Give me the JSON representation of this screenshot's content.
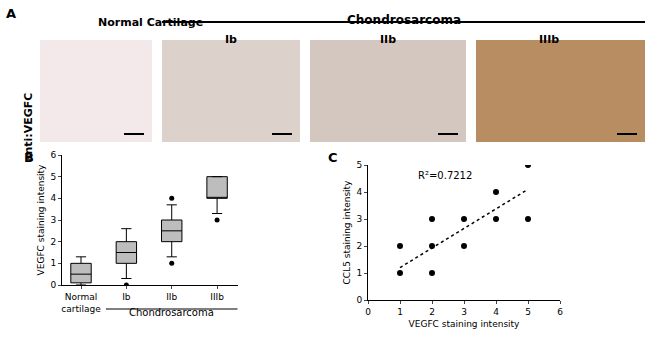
{
  "image_panel": {
    "panel_label": "A",
    "row_label": "anti:VEGFC",
    "columns": [
      "Normal Cartilage",
      "Ib",
      "IIb",
      "IIIb"
    ],
    "group": {
      "label": "Chondrosarcoma",
      "columns": [
        "Ib",
        "IIb",
        "IIIb"
      ]
    }
  },
  "chart_data": [
    {
      "panel_label": "B",
      "type": "box",
      "y_label": "VEGFC staining intensity",
      "categories": [
        "Normal cartilage",
        "Ib",
        "IIb",
        "IIIb"
      ],
      "group": {
        "label": "Chondrosarcoma",
        "categories": [
          "Ib",
          "IIb",
          "IIIb"
        ]
      },
      "boxes": [
        {
          "lower": 0,
          "q1": 0.1,
          "median": 0.5,
          "q3": 1.0,
          "upper": 1.3,
          "outliers": []
        },
        {
          "lower": 0.3,
          "q1": 1.0,
          "median": 1.5,
          "q3": 2.0,
          "upper": 2.6,
          "outliers": [
            0
          ]
        },
        {
          "lower": 1.3,
          "q1": 2.0,
          "median": 2.5,
          "q3": 3.0,
          "upper": 3.7,
          "outliers": [
            1.0,
            4.0
          ]
        },
        {
          "lower": 3.3,
          "q1": 4.0,
          "median": 4.0,
          "q3": 5.0,
          "upper": 5.0,
          "outliers": [
            3.0
          ]
        }
      ],
      "color": "#bdbdbd",
      "ylim": [
        0,
        6
      ],
      "yticks": [
        0,
        1,
        2,
        3,
        4,
        5,
        6
      ],
      "grid": false
    },
    {
      "panel_label": "C",
      "type": "scatter",
      "x_label": "VEGFC staining intensity",
      "y_label": "CCL5 staining intensity",
      "x": [
        1,
        1,
        2,
        2,
        2,
        3,
        3,
        4,
        4,
        5,
        5
      ],
      "values": [
        1,
        2,
        1,
        2,
        3,
        2,
        3,
        3,
        4,
        3,
        5
      ],
      "color": "#000000",
      "marker": "circle",
      "trend": {
        "x": [
          1,
          5
        ],
        "y": [
          1.2,
          4.1
        ],
        "line_style": "dot"
      },
      "annotations": [
        {
          "text": "R²=0.7212",
          "x": 1.5,
          "y": 4.6
        }
      ],
      "xlim": [
        0,
        6
      ],
      "xticks": [
        0,
        1,
        2,
        3,
        4,
        5,
        6
      ],
      "ylim": [
        0,
        5
      ],
      "yticks": [
        0,
        1,
        2,
        3,
        4,
        5
      ],
      "grid": false
    }
  ]
}
